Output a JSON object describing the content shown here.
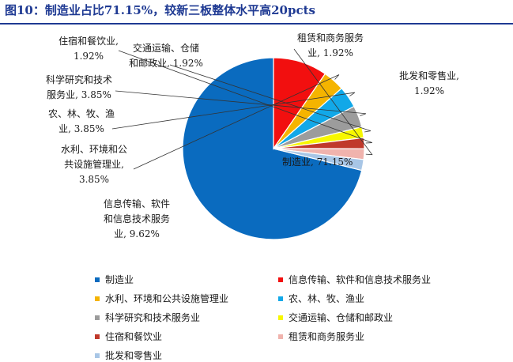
{
  "figure": {
    "title": "图10：制造业占比71.15%，较新三板整体水平高20pcts"
  },
  "chart_data": {
    "type": "pie",
    "title": "",
    "slices": [
      {
        "name": "制造业",
        "value": 71.15,
        "color": "#0a6bbf",
        "label_lines": [
          "制造业, 71.15%"
        ]
      },
      {
        "name": "信息传输、软件和信息技术服务业",
        "value": 9.62,
        "color": "#f20f0f",
        "label_lines": [
          "信息传输、软件",
          "和信息技术服务",
          "业, 9.62%"
        ]
      },
      {
        "name": "水利、环境和公共设施管理业",
        "value": 3.85,
        "color": "#f5b400",
        "label_lines": [
          "水利、环境和公",
          "共设施管理业,",
          "3.85%"
        ]
      },
      {
        "name": "农、林、牧、渔业",
        "value": 3.85,
        "color": "#12a8e8",
        "label_lines": [
          "农、林、牧、渔",
          "业, 3.85%"
        ]
      },
      {
        "name": "科学研究和技术服务业",
        "value": 3.85,
        "color": "#9c9c9c",
        "label_lines": [
          "科学研究和技术",
          "服务业, 3.85%"
        ]
      },
      {
        "name": "交通运输、仓储和邮政业",
        "value": 1.92,
        "color": "#f7f700",
        "label_lines": [
          "交通运输、仓储",
          "和邮政业, 1.92%"
        ]
      },
      {
        "name": "住宿和餐饮业",
        "value": 1.92,
        "color": "#c0392b",
        "label_lines": [
          "住宿和餐饮业,",
          "1.92%"
        ]
      },
      {
        "name": "租赁和商务服务业",
        "value": 1.92,
        "color": "#f0b3ad",
        "label_lines": [
          "租赁和商务服务",
          "业, 1.92%"
        ]
      },
      {
        "name": "批发和零售业",
        "value": 1.92,
        "color": "#a8c6e6",
        "label_lines": [
          "批发和零售业,",
          "1.92%"
        ]
      }
    ],
    "legend": {
      "position": "bottom"
    }
  }
}
